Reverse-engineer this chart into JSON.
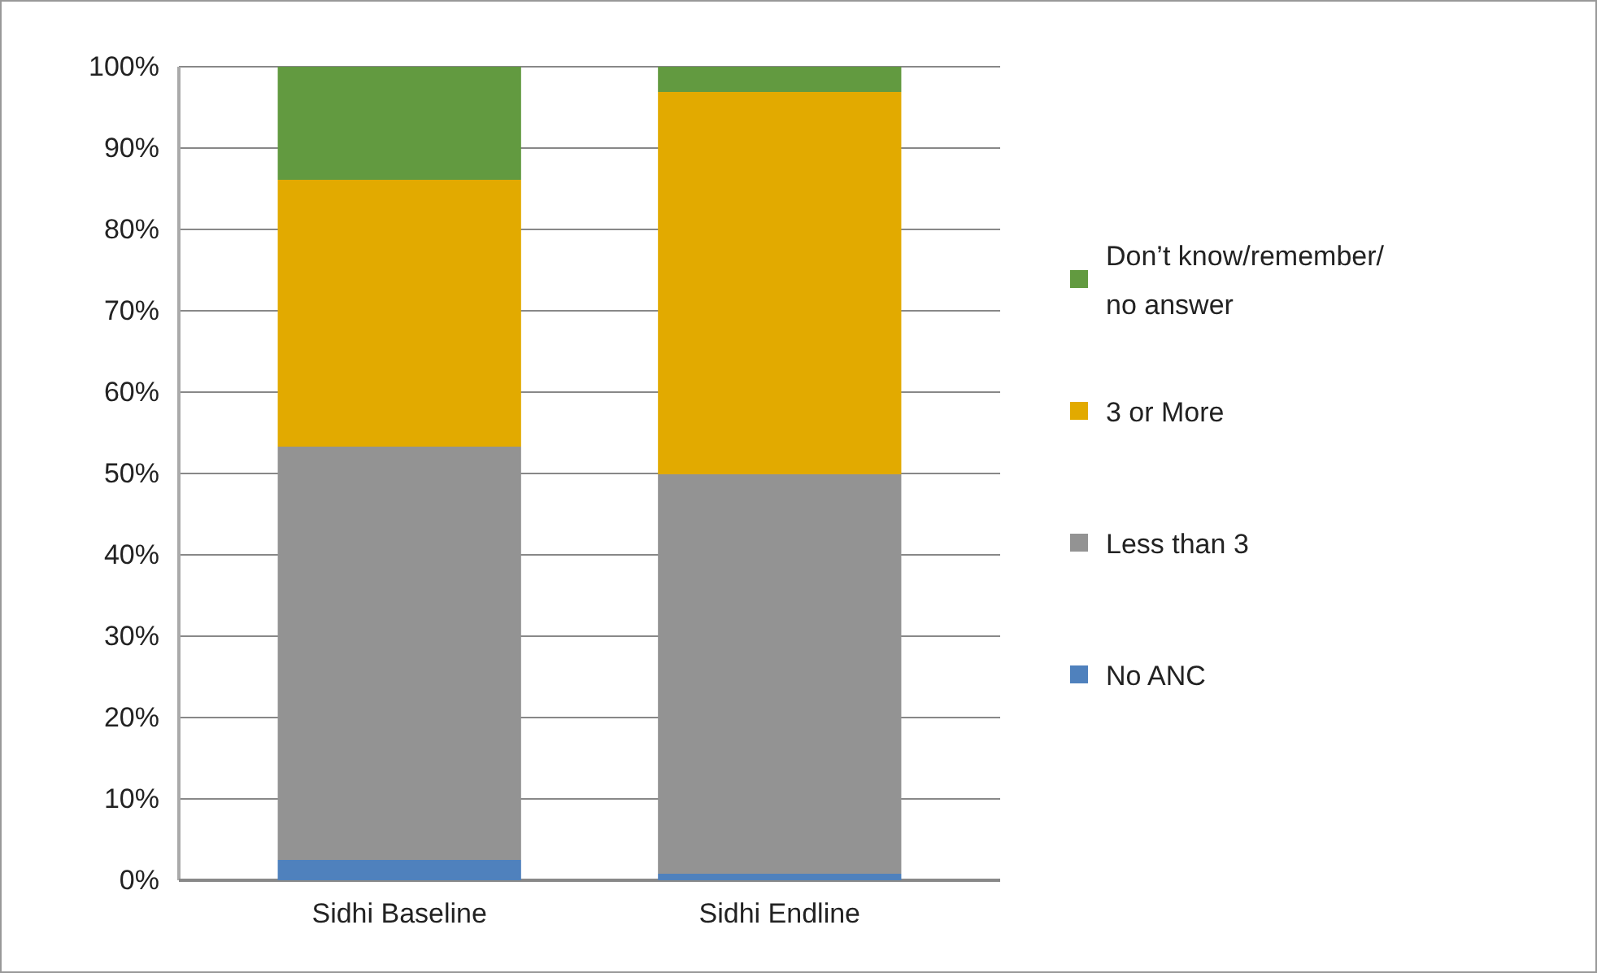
{
  "chart_data": {
    "type": "bar",
    "stacked": true,
    "categories": [
      "Sidhi Baseline",
      "Sidhi Endline"
    ],
    "series": [
      {
        "name": "No ANC",
        "color": "#4f81bd",
        "values": [
          2.5,
          0.8
        ]
      },
      {
        "name": "Less than 3",
        "color": "#939393",
        "values": [
          50.8,
          49.1
        ]
      },
      {
        "name": "3 or More",
        "color": "#e2aa00",
        "values": [
          32.8,
          47.0
        ]
      },
      {
        "name": "Don’t know/remember/no answer",
        "color": "#629a40",
        "values": [
          13.9,
          3.1
        ]
      }
    ],
    "ylim": [
      0,
      100
    ],
    "yticks": [
      {
        "value": 0,
        "label": "0%"
      },
      {
        "value": 10,
        "label": "10%"
      },
      {
        "value": 20,
        "label": "20%"
      },
      {
        "value": 30,
        "label": "30%"
      },
      {
        "value": 40,
        "label": "40%"
      },
      {
        "value": 50,
        "label": "50%"
      },
      {
        "value": 60,
        "label": "60%"
      },
      {
        "value": 70,
        "label": "70%"
      },
      {
        "value": 80,
        "label": "80%"
      },
      {
        "value": 90,
        "label": "90%"
      },
      {
        "value": 100,
        "label": "100%"
      }
    ],
    "grid": "y",
    "legend": "right"
  }
}
